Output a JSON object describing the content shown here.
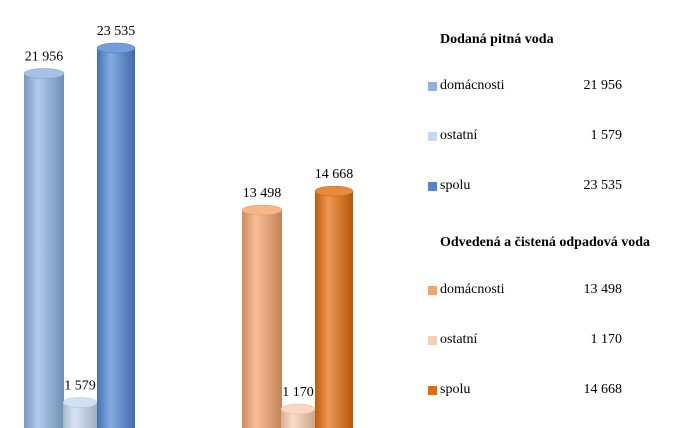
{
  "chart_data": {
    "type": "bar",
    "groups": [
      {
        "name": "Dodaná pitná voda",
        "categories": [
          "domácnosti",
          "ostatní",
          "spolu"
        ],
        "values": [
          21956,
          1579,
          23535
        ],
        "value_labels": [
          "21 956",
          "1 579",
          "23 535"
        ],
        "colors": [
          "#8db3e2",
          "#c6d9f1",
          "#4f86d4"
        ]
      },
      {
        "name": "Odvedená a čistená odpadová voda",
        "categories": [
          "domácnosti",
          "ostatní",
          "spolu"
        ],
        "values": [
          13498,
          1170,
          14668
        ],
        "value_labels": [
          "13 498",
          "1 170",
          "14 668"
        ],
        "colors": [
          "#f5a46c",
          "#f9cdb0",
          "#e46c0a"
        ]
      }
    ]
  }
}
